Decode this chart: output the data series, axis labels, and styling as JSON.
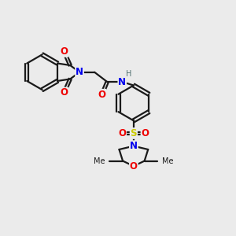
{
  "bg_color": "#ebebeb",
  "bond_color": "#1a1a1a",
  "bond_width": 1.6,
  "atom_colors": {
    "N": "#0000ee",
    "O": "#ee0000",
    "S": "#cccc00",
    "H": "#507070",
    "C": "#1a1a1a"
  },
  "font_size": 8.5,
  "fig_bg": "#ebebeb"
}
